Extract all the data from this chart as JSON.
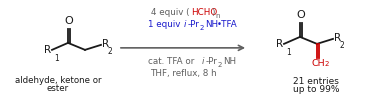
{
  "bg_color": "#ffffff",
  "black": "#1a1a1a",
  "red": "#cc0000",
  "blue": "#1a1acc",
  "gray": "#606060",
  "bottom_line1": "aldehyde, ketone or",
  "bottom_line2": "ester",
  "result_line1": "21 entries",
  "result_line2": "up to 99%",
  "figsize": [
    3.78,
    0.95
  ],
  "dpi": 100
}
